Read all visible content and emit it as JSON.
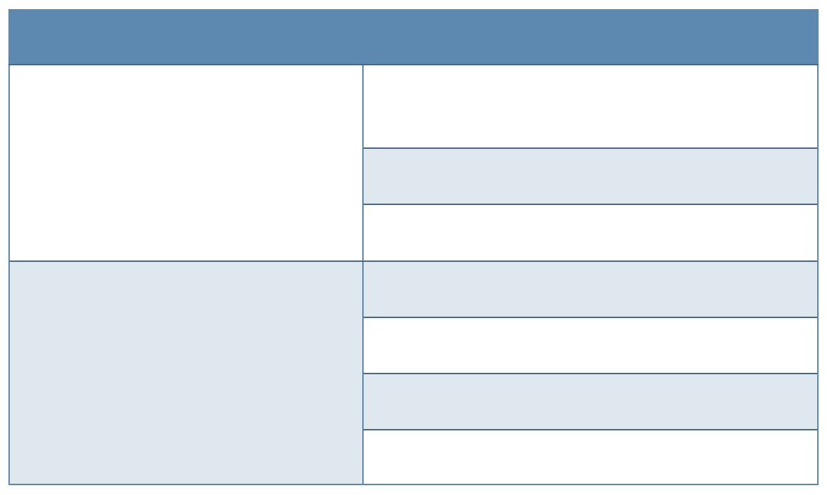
{
  "colors": {
    "header_bg": "#5d89b0",
    "band_light": "#dfe7ef",
    "band_white": "#ffffff",
    "border": "#5b87ad",
    "row_divider": "#45688a"
  },
  "table": {
    "header": "",
    "groups": [
      {
        "label": "",
        "band": "white",
        "rows": [
          "",
          "",
          ""
        ]
      },
      {
        "label": "",
        "band": "light",
        "rows": [
          "",
          "",
          "",
          ""
        ]
      }
    ]
  }
}
